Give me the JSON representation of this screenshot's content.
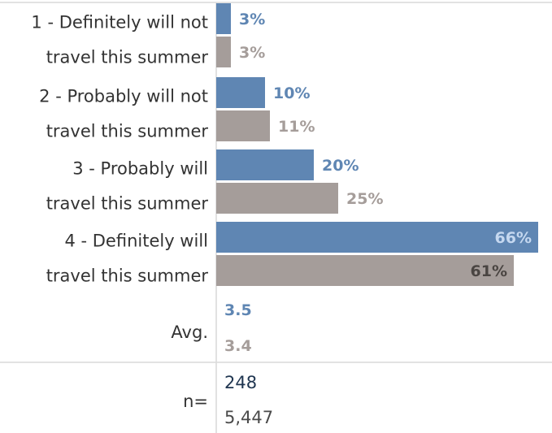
{
  "chart_data": {
    "type": "bar",
    "orientation": "horizontal",
    "grid": false,
    "legend": "none",
    "xlim": [
      0,
      100
    ],
    "categories": [
      [
        "1 - Definitely will not",
        "travel this summer"
      ],
      [
        "2 - Probably will not",
        "travel this summer"
      ],
      [
        "3 - Probably will",
        "travel this summer"
      ],
      [
        "4 - Definitely will",
        "travel this summer"
      ]
    ],
    "series": [
      {
        "values": [
          3,
          10,
          20,
          66
        ],
        "labels": [
          "3%",
          "10%",
          "20%",
          "66%"
        ],
        "color": "#5f86b3",
        "label_color": "#5f86b3",
        "inside_label_color": "#c5d8f0"
      },
      {
        "values": [
          3,
          11,
          25,
          61
        ],
        "labels": [
          "3%",
          "11%",
          "25%",
          "61%"
        ],
        "color": "#a59d9a",
        "label_color": "#a59d9a",
        "inside_label_color": "#4a4542"
      }
    ],
    "avg": {
      "label": "Avg.",
      "values": [
        "3.5",
        "3.4"
      ],
      "colors": [
        "#5f86b3",
        "#a59d9a"
      ]
    },
    "n": {
      "label": "n=",
      "values": [
        "248",
        "5,447"
      ],
      "colors": [
        "#1f3550",
        "#4a4a4a"
      ]
    },
    "colors": {
      "axis": "#d9d9d9",
      "text": "#333333"
    }
  }
}
